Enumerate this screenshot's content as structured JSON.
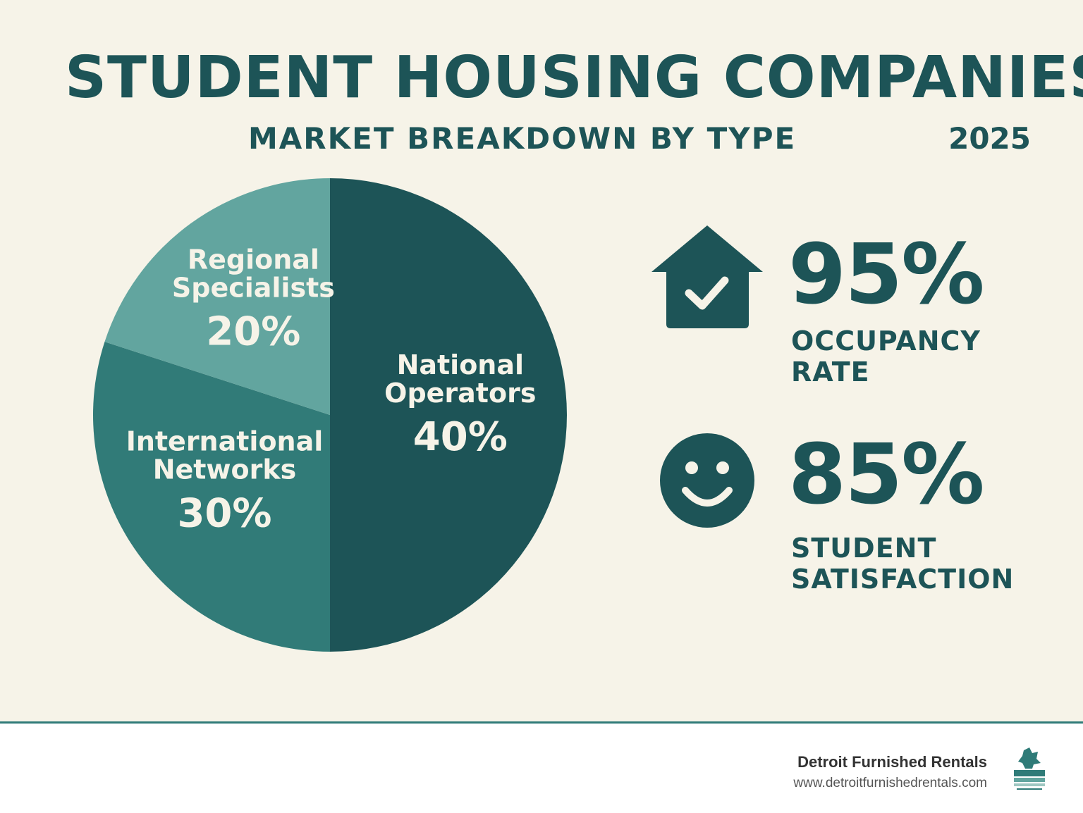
{
  "header": {
    "title": "STUDENT HOUSING COMPANIES",
    "subtitle": "MARKET BREAKDOWN BY TYPE",
    "year": "2025"
  },
  "chart_data": {
    "type": "pie",
    "title": "STUDENT HOUSING COMPANIES",
    "subtitle": "MARKET BREAKDOWN BY TYPE",
    "slices": [
      {
        "label_lines": [
          "National",
          "Operators"
        ],
        "value": 40,
        "value_label": "40%",
        "color": "#1d5457"
      },
      {
        "label_lines": [
          "International",
          "Networks"
        ],
        "value": 30,
        "value_label": "30%",
        "color": "#317b78"
      },
      {
        "label_lines": [
          "Regional",
          "Specialists"
        ],
        "value": 20,
        "value_label": "20%",
        "color": "#62a59f"
      }
    ]
  },
  "stats": [
    {
      "icon": "house-check-icon",
      "value": "95%",
      "label_lines": [
        "OCCUPANCY",
        "RATE"
      ]
    },
    {
      "icon": "smiley-face-icon",
      "value": "85%",
      "label_lines": [
        "STUDENT",
        "SATISFACTION"
      ]
    }
  ],
  "footer": {
    "brand": "Detroit Furnished Rentals",
    "url": "www.detroitfurnishedrentals.com",
    "logo_icon": "detroit-furnished-logo-icon"
  },
  "colors": {
    "background": "#f6f3e8",
    "primary": "#1d5457",
    "footer_line": "#2f7b78"
  }
}
